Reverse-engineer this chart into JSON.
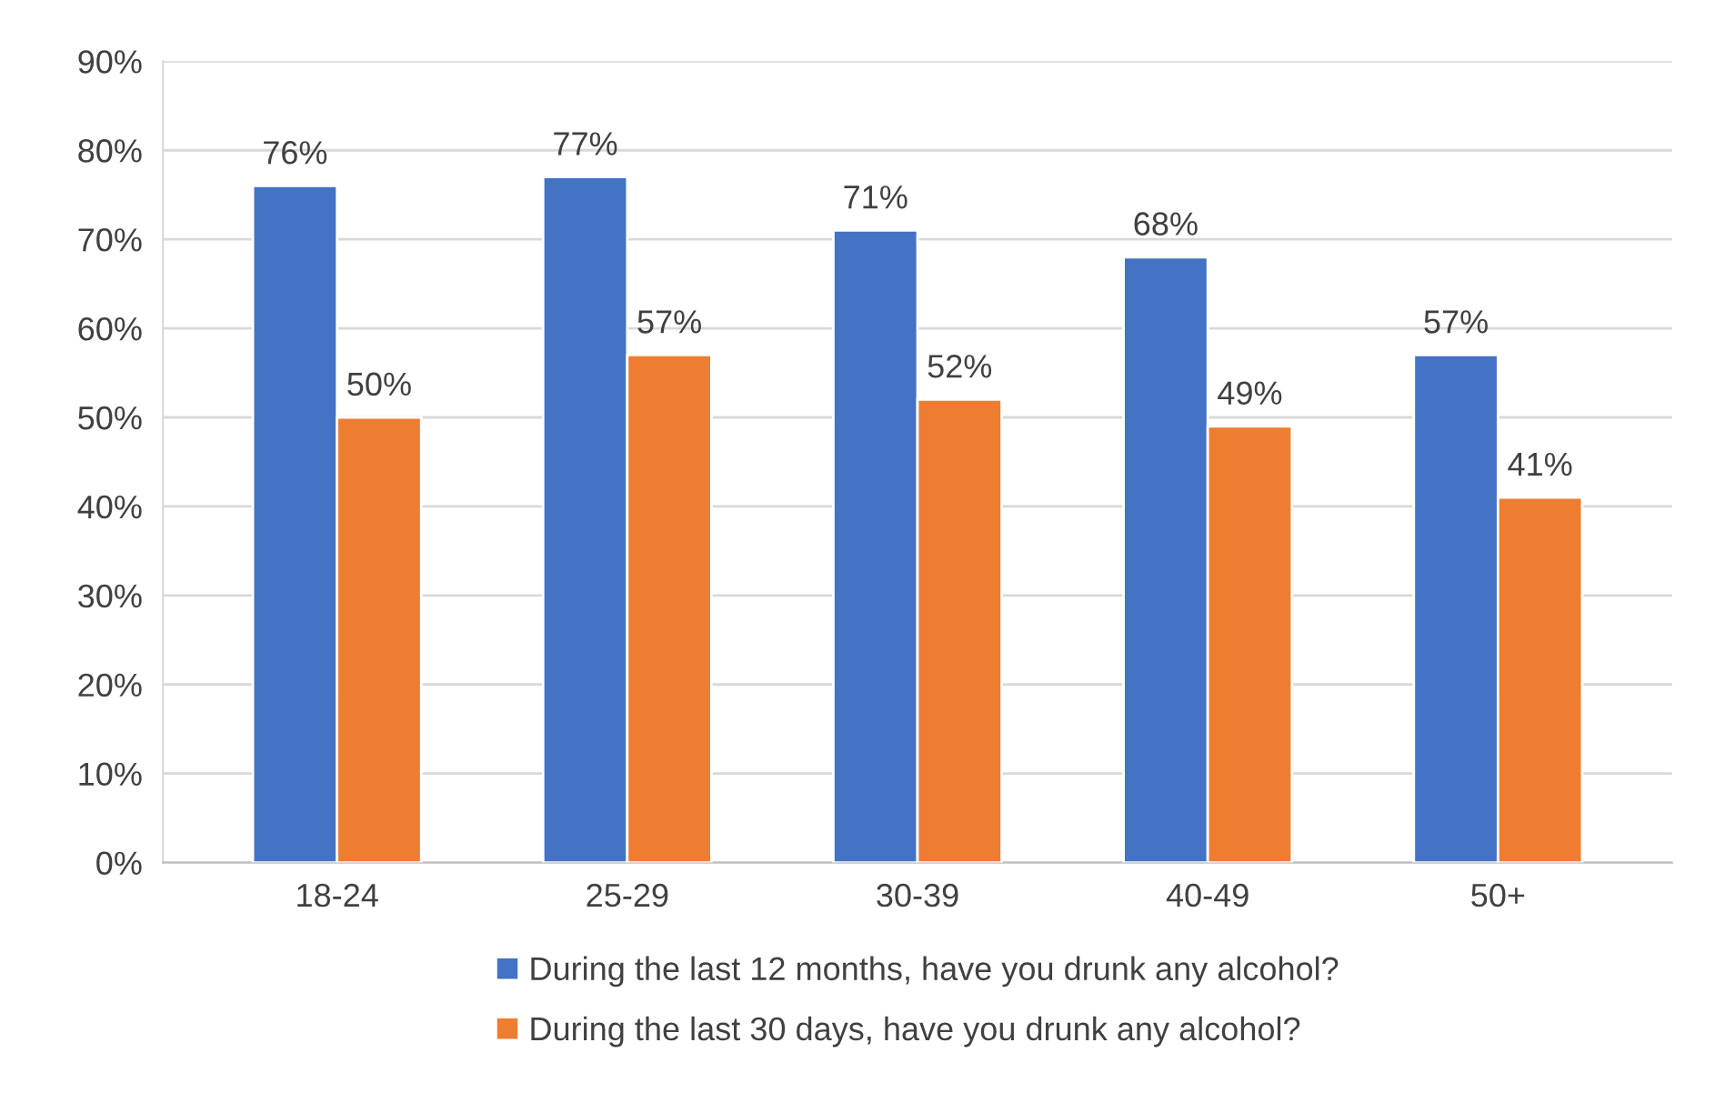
{
  "chart_data": {
    "type": "bar",
    "categories": [
      "18-24",
      "25-29",
      "30-39",
      "40-49",
      "50+"
    ],
    "series": [
      {
        "name": "During the last 12 months, have you drunk any alcohol?",
        "color": "#4472c4",
        "values": [
          76,
          77,
          71,
          68,
          57
        ]
      },
      {
        "name": "During the last 30 days, have you drunk any alcohol?",
        "color": "#ed7d31",
        "values": [
          50,
          57,
          52,
          49,
          41
        ]
      }
    ],
    "ylim": [
      0,
      90
    ],
    "yticks": [
      {
        "value": 0,
        "label": "0%"
      },
      {
        "value": 10,
        "label": "10%"
      },
      {
        "value": 20,
        "label": "20%"
      },
      {
        "value": 30,
        "label": "30%"
      },
      {
        "value": 40,
        "label": "40%"
      },
      {
        "value": 50,
        "label": "50%"
      },
      {
        "value": 60,
        "label": "60%"
      },
      {
        "value": 70,
        "label": "70%"
      },
      {
        "value": 80,
        "label": "80%"
      },
      {
        "value": 90,
        "label": "90%"
      }
    ],
    "value_labels": [
      [
        "76%",
        "77%",
        "71%",
        "68%",
        "57%"
      ],
      [
        "50%",
        "57%",
        "52%",
        "49%",
        "41%"
      ]
    ],
    "grid": "y",
    "legend": "bottom"
  }
}
